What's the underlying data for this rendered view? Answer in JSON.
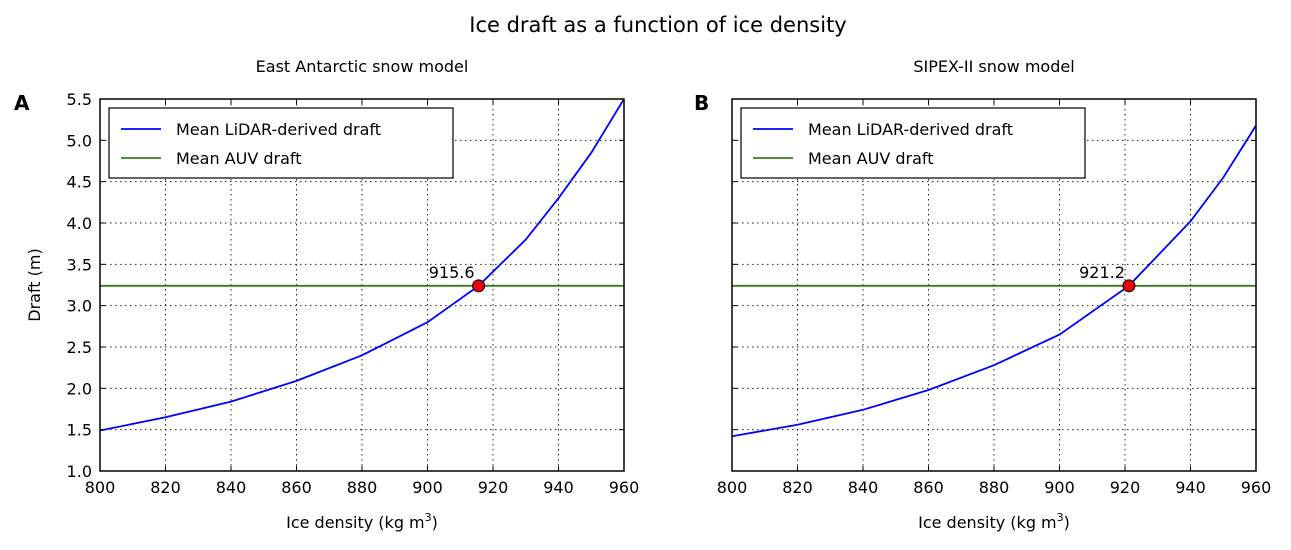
{
  "figure": {
    "title": "Ice draft as a function of ice density"
  },
  "chart_data": [
    {
      "type": "line",
      "panel": "A",
      "title": "East Antarctic snow model",
      "xlabel": "Ice density (kg m",
      "xlabel_sup": "3",
      "xlabel_close": ")",
      "ylabel": "Draft (m)",
      "xlim": [
        800,
        960
      ],
      "ylim": [
        1.0,
        5.5
      ],
      "xticks": [
        800,
        820,
        840,
        860,
        880,
        900,
        920,
        940,
        960
      ],
      "yticks": [
        "1.0",
        "1.5",
        "2.0",
        "2.5",
        "3.0",
        "3.5",
        "4.0",
        "4.5",
        "5.0",
        "5.5"
      ],
      "show_ytick_labels": true,
      "grid": true,
      "legend_position": "top-left",
      "series": [
        {
          "name": "Mean LiDAR-derived draft",
          "color": "#0000ff",
          "x": [
            800,
            820,
            840,
            860,
            880,
            900,
            915.6,
            930,
            940,
            950,
            960
          ],
          "y": [
            1.49,
            1.65,
            1.84,
            2.09,
            2.4,
            2.8,
            3.24,
            3.8,
            4.3,
            4.85,
            5.5
          ]
        },
        {
          "name": "Mean AUV draft",
          "color": "#3a7b1d",
          "x": [
            800,
            960
          ],
          "y": [
            3.24,
            3.24
          ]
        }
      ],
      "intersection": {
        "x": 915.6,
        "y": 3.24,
        "label": "915.6",
        "color": "#e8000b"
      }
    },
    {
      "type": "line",
      "panel": "B",
      "title": "SIPEX-II snow model",
      "xlabel": "Ice density (kg m",
      "xlabel_sup": "3",
      "xlabel_close": ")",
      "ylabel": "",
      "xlim": [
        800,
        960
      ],
      "ylim": [
        1.0,
        5.5
      ],
      "xticks": [
        800,
        820,
        840,
        860,
        880,
        900,
        920,
        940,
        960
      ],
      "yticks": [
        "1.0",
        "1.5",
        "2.0",
        "2.5",
        "3.0",
        "3.5",
        "4.0",
        "4.5",
        "5.0",
        "5.5"
      ],
      "show_ytick_labels": false,
      "grid": true,
      "legend_position": "top-left",
      "series": [
        {
          "name": "Mean LiDAR-derived draft",
          "color": "#0000ff",
          "x": [
            800,
            820,
            840,
            860,
            880,
            900,
            921.2,
            940,
            950,
            960
          ],
          "y": [
            1.42,
            1.56,
            1.74,
            1.98,
            2.28,
            2.65,
            3.24,
            4.02,
            4.55,
            5.18
          ]
        },
        {
          "name": "Mean AUV draft",
          "color": "#3a7b1d",
          "x": [
            800,
            960
          ],
          "y": [
            3.24,
            3.24
          ]
        }
      ],
      "intersection": {
        "x": 921.2,
        "y": 3.24,
        "label": "921.2",
        "color": "#e8000b"
      }
    }
  ]
}
